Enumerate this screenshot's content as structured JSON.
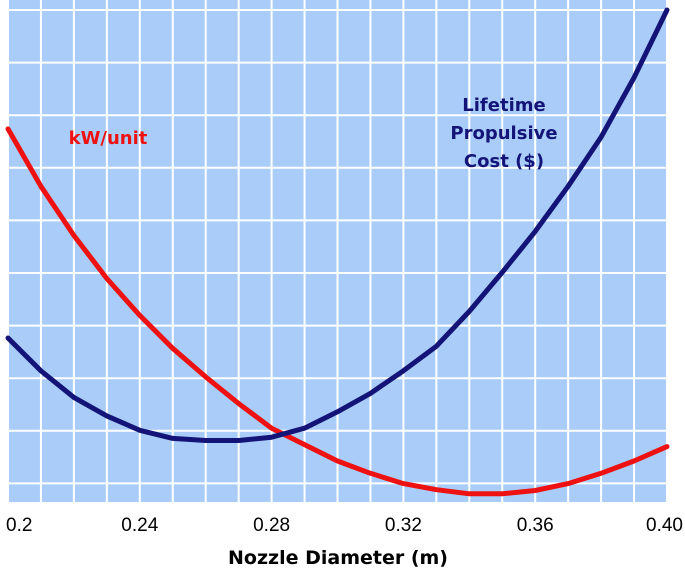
{
  "chart_data": {
    "type": "line",
    "xlabel": "Nozzle Diameter (m)",
    "xlim": [
      0.2,
      0.4
    ],
    "x_ticks": [
      "0.2",
      "0.24",
      "0.28",
      "0.32",
      "0.36",
      "0.40"
    ],
    "grid": true,
    "background_color": "#a9cdf8",
    "grid_color": "#ffffff",
    "series": [
      {
        "name": "kW/unit",
        "label_lines": [
          "kW/unit"
        ],
        "color": "#ee1111",
        "x": [
          0.2,
          0.21,
          0.22,
          0.23,
          0.24,
          0.25,
          0.26,
          0.27,
          0.28,
          0.29,
          0.3,
          0.31,
          0.32,
          0.33,
          0.34,
          0.35,
          0.36,
          0.37,
          0.38,
          0.39,
          0.4
        ],
        "y": [
          0.91,
          0.77,
          0.65,
          0.545,
          0.455,
          0.375,
          0.305,
          0.24,
          0.18,
          0.14,
          0.1,
          0.07,
          0.045,
          0.03,
          0.02,
          0.02,
          0.028,
          0.045,
          0.07,
          0.1,
          0.135
        ]
      },
      {
        "name": "Lifetime Propulsive Cost ($)",
        "label_lines": [
          "Lifetime",
          "Propulsive",
          "Cost ($)"
        ],
        "color": "#141478",
        "x": [
          0.2,
          0.21,
          0.22,
          0.23,
          0.24,
          0.25,
          0.26,
          0.27,
          0.28,
          0.29,
          0.3,
          0.31,
          0.32,
          0.33,
          0.34,
          0.35,
          0.36,
          0.37,
          0.38,
          0.39,
          0.4
        ],
        "y": [
          0.4,
          0.32,
          0.255,
          0.21,
          0.175,
          0.155,
          0.15,
          0.15,
          0.158,
          0.18,
          0.22,
          0.265,
          0.32,
          0.38,
          0.465,
          0.56,
          0.66,
          0.77,
          0.89,
          1.035,
          1.2
        ]
      }
    ]
  }
}
